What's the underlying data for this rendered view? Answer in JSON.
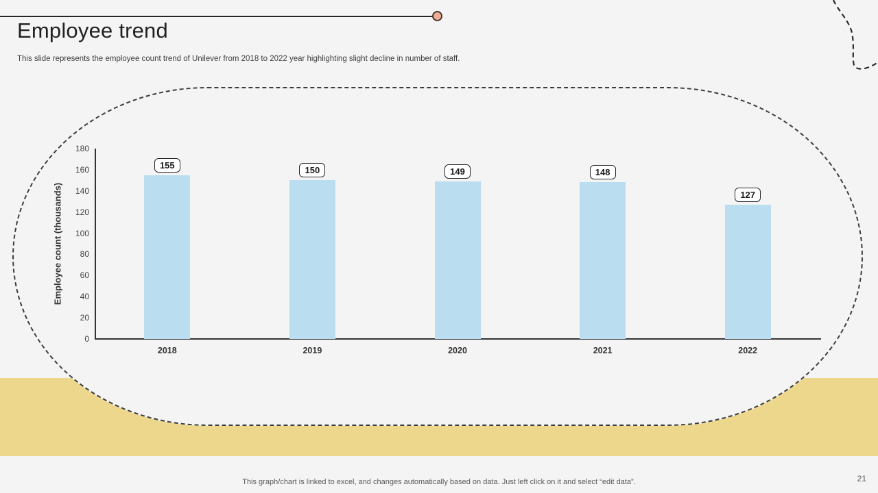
{
  "header": {
    "title": "Employee trend",
    "subtitle": "This slide represents the employee count trend of Unilever from 2018 to 2022 year highlighting slight decline in number of staff."
  },
  "chart_data": {
    "type": "bar",
    "categories": [
      "2018",
      "2019",
      "2020",
      "2021",
      "2022"
    ],
    "values": [
      155,
      150,
      149,
      148,
      127
    ],
    "data_labels": [
      155,
      150,
      149,
      148,
      127
    ],
    "title": "",
    "xlabel": "",
    "ylabel": "Employee count (thousands)",
    "ylim": [
      0,
      180
    ],
    "ytick_step": 20,
    "grid": false,
    "legend": false,
    "bar_color": "#badef0"
  },
  "footer": {
    "note": "This graph/chart is linked to excel,  and changes automatically based on data. Just left click on it and select “edit data”.",
    "page_number": "21"
  },
  "colors": {
    "background": "#f4f4f4",
    "accent_band": "#edd78d",
    "bar": "#badef0",
    "dot_fill": "#edad96",
    "dot_border": "#4a352e",
    "line": "#262626",
    "dash_outline": "#3c3c3c"
  }
}
